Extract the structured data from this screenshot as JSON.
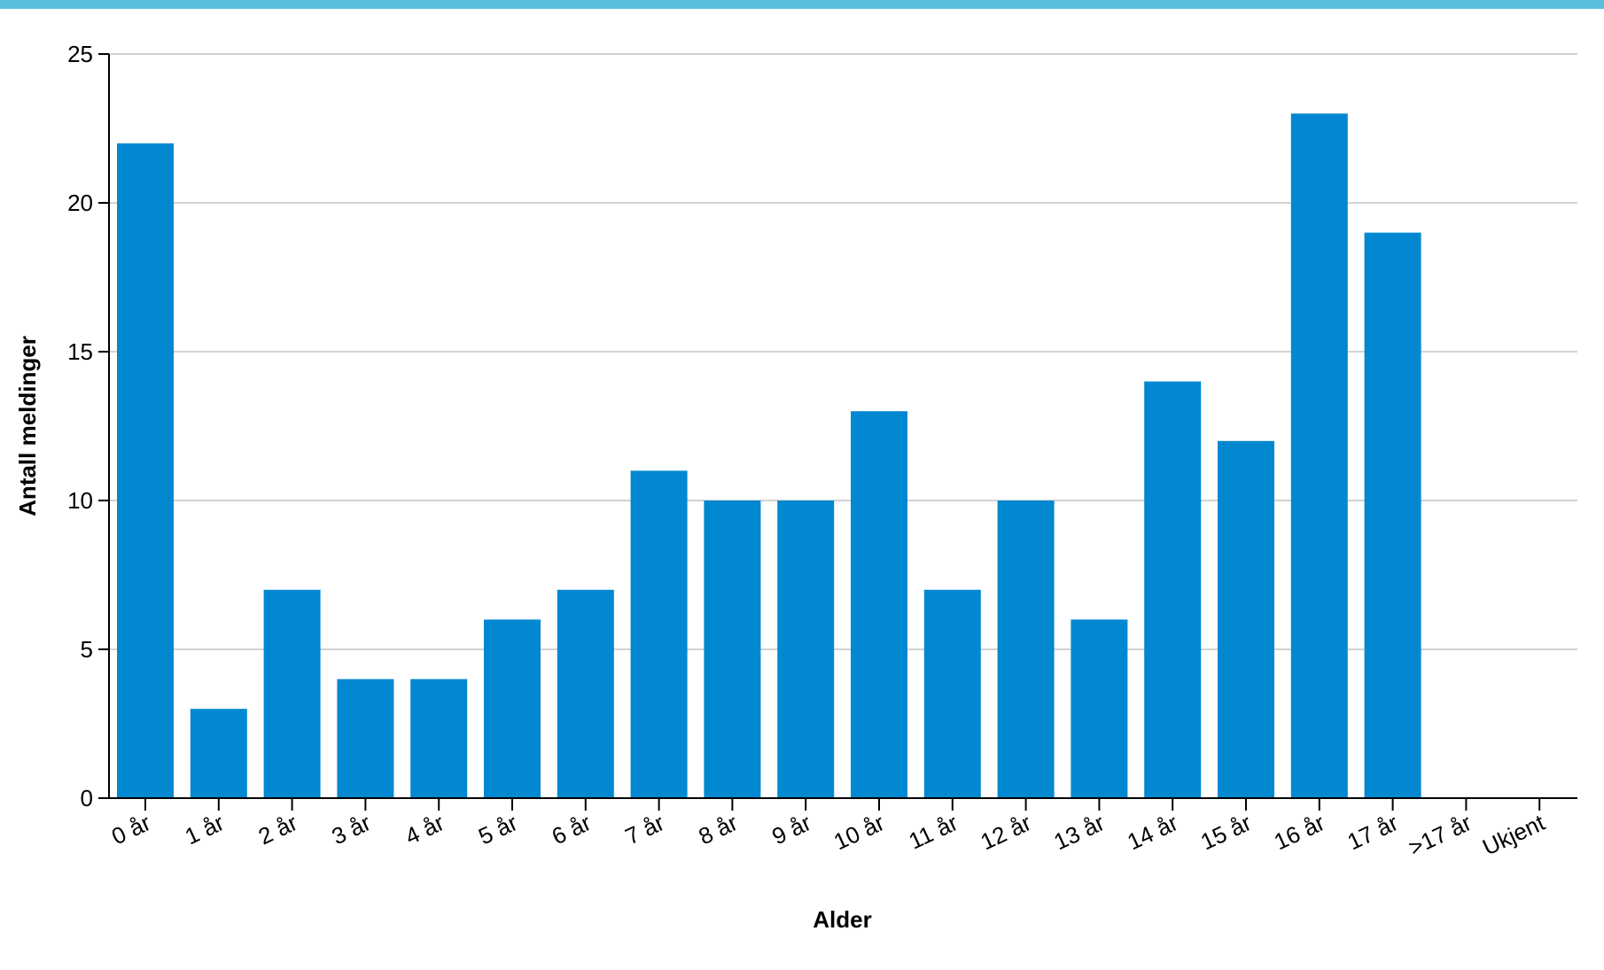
{
  "chart_data": {
    "type": "bar",
    "title": "",
    "xlabel": "Alder",
    "ylabel": "Antall meldinger",
    "categories": [
      "0 år",
      "1 år",
      "2 år",
      "3 år",
      "4 år",
      "5 år",
      "6 år",
      "7 år",
      "8 år",
      "9 år",
      "10 år",
      "11 år",
      "12 år",
      "13 år",
      "14 år",
      "15 år",
      "16 år",
      "17 år",
      ">17 år",
      "Ukjent"
    ],
    "values": [
      22,
      3,
      7,
      4,
      4,
      6,
      7,
      11,
      10,
      10,
      13,
      7,
      10,
      6,
      14,
      12,
      23,
      19,
      0,
      0
    ],
    "ylim": [
      0,
      25
    ],
    "yticks": [
      0,
      5,
      10,
      15,
      20,
      25
    ],
    "grid": true,
    "legend": "none",
    "bar_color": "#0288d1"
  }
}
